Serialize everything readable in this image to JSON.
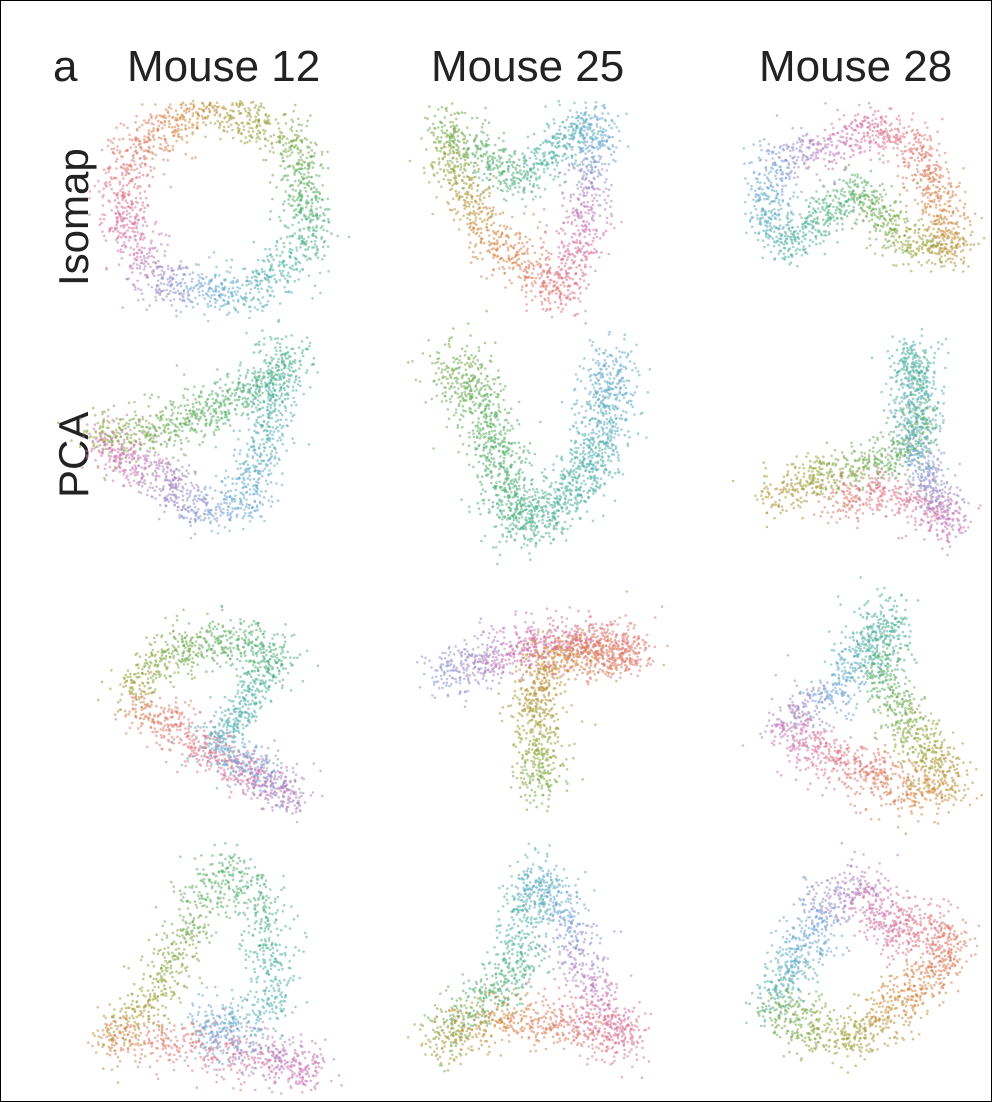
{
  "figure": {
    "panel_label": "a",
    "column_titles": [
      "Mouse 12",
      "Mouse 25",
      "Mouse 28"
    ],
    "row_titles": [
      "Isomap",
      "PCA",
      "",
      ""
    ]
  },
  "chart_data": {
    "type": "scatter",
    "layout": "grid of 4 rows x 3 columns of 2D embeddings",
    "axes": "none (no ticks, no labels, no grid)",
    "point_color": "hue colormap (cyclic: orange, green, teal, blue, pink)",
    "colors": [
      "#d4873a",
      "#8fa83a",
      "#57b06a",
      "#4fb3a4",
      "#6ea8d8",
      "#d073b3",
      "#e07a7a"
    ],
    "panels": [
      {
        "row": 0,
        "column": "Mouse 12",
        "method": "Isomap",
        "shape": "ring"
      },
      {
        "row": 0,
        "column": "Mouse 25",
        "method": "Isomap",
        "shape": "twisted loop"
      },
      {
        "row": 0,
        "column": "Mouse 28",
        "method": "Isomap",
        "shape": "folded loop"
      },
      {
        "row": 1,
        "column": "Mouse 12",
        "method": "PCA",
        "shape": "arrow"
      },
      {
        "row": 1,
        "column": "Mouse 25",
        "method": "PCA",
        "shape": "V"
      },
      {
        "row": 1,
        "column": "Mouse 28",
        "method": "PCA",
        "shape": "horn"
      },
      {
        "row": 2,
        "column": "Mouse 12",
        "method": "PCA",
        "shape": "chevron"
      },
      {
        "row": 2,
        "column": "Mouse 25",
        "method": "PCA",
        "shape": "T"
      },
      {
        "row": 2,
        "column": "Mouse 28",
        "method": "PCA",
        "shape": "triangle"
      },
      {
        "row": 3,
        "column": "Mouse 12",
        "method": "PCA",
        "shape": "triangle loop"
      },
      {
        "row": 3,
        "column": "Mouse 25",
        "method": "PCA",
        "shape": "tripod"
      },
      {
        "row": 3,
        "column": "Mouse 28",
        "method": "PCA",
        "shape": "bow"
      }
    ]
  }
}
